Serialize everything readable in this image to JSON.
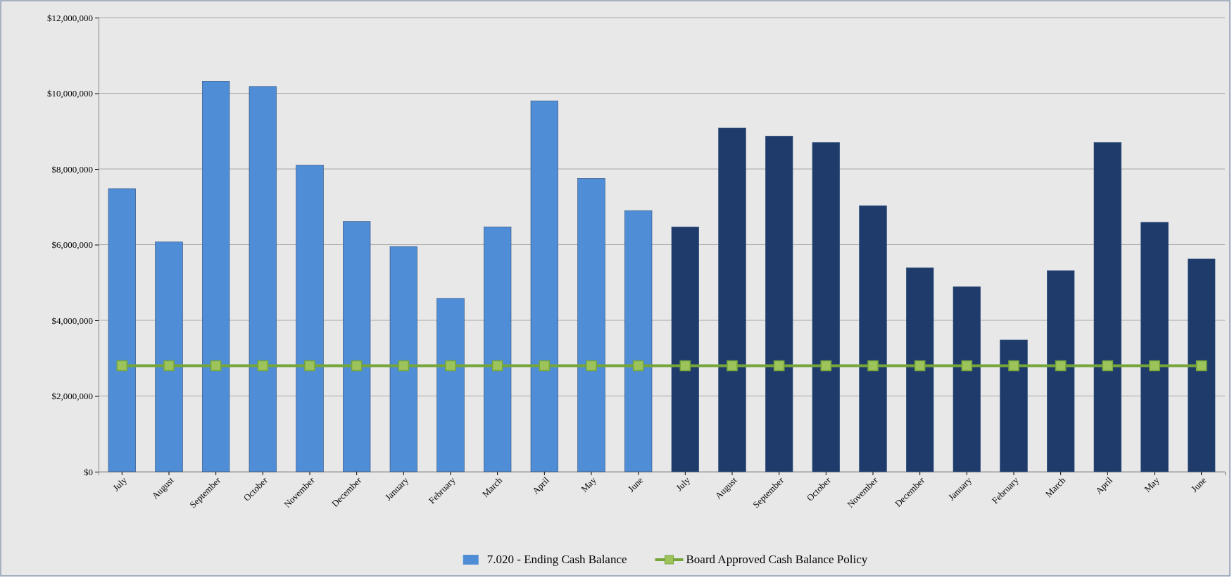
{
  "chart_data": {
    "type": "bar",
    "categories": [
      "July",
      "August",
      "September",
      "October",
      "November",
      "December",
      "January",
      "February",
      "March",
      "April",
      "May",
      "June",
      "July",
      "August",
      "September",
      "October",
      "November",
      "December",
      "January",
      "February",
      "March",
      "April",
      "May",
      "June"
    ],
    "series": [
      {
        "name": "7.020 - Ending Cash Balance",
        "color": "#4f8ed6",
        "colors": [
          "#4f8ed6",
          "#4f8ed6",
          "#4f8ed6",
          "#4f8ed6",
          "#4f8ed6",
          "#4f8ed6",
          "#4f8ed6",
          "#4f8ed6",
          "#4f8ed6",
          "#4f8ed6",
          "#4f8ed6",
          "#4f8ed6",
          "#1f3b6b",
          "#1f3b6b",
          "#1f3b6b",
          "#1f3b6b",
          "#1f3b6b",
          "#1f3b6b",
          "#1f3b6b",
          "#1f3b6b",
          "#1f3b6b",
          "#1f3b6b",
          "#1f3b6b",
          "#1f3b6b"
        ],
        "values": [
          7480000,
          6070000,
          10320000,
          10180000,
          8100000,
          6610000,
          5950000,
          4580000,
          6470000,
          9800000,
          7750000,
          6900000,
          6470000,
          9080000,
          8870000,
          8700000,
          7030000,
          5390000,
          4890000,
          3480000,
          5310000,
          8700000,
          6590000,
          5620000
        ]
      },
      {
        "name": "Board Approved Cash Balance Policy",
        "type": "line",
        "color": "#76a53a",
        "marker": "square",
        "values": [
          2800000,
          2800000,
          2800000,
          2800000,
          2800000,
          2800000,
          2800000,
          2800000,
          2800000,
          2800000,
          2800000,
          2800000,
          2800000,
          2800000,
          2800000,
          2800000,
          2800000,
          2800000,
          2800000,
          2800000,
          2800000,
          2800000,
          2800000,
          2800000
        ]
      }
    ],
    "ylim": [
      0,
      12000000
    ],
    "yticks": [
      {
        "value": 0,
        "label": "$0"
      },
      {
        "value": 2000000,
        "label": "$2,000,000"
      },
      {
        "value": 4000000,
        "label": "$4,000,000"
      },
      {
        "value": 6000000,
        "label": "$6,000,000"
      },
      {
        "value": 8000000,
        "label": "$8,000,000"
      },
      {
        "value": 10000000,
        "label": "$10,000,000"
      },
      {
        "value": 12000000,
        "label": "$12,000,000"
      }
    ],
    "grid": "y",
    "legend": "bottom"
  }
}
